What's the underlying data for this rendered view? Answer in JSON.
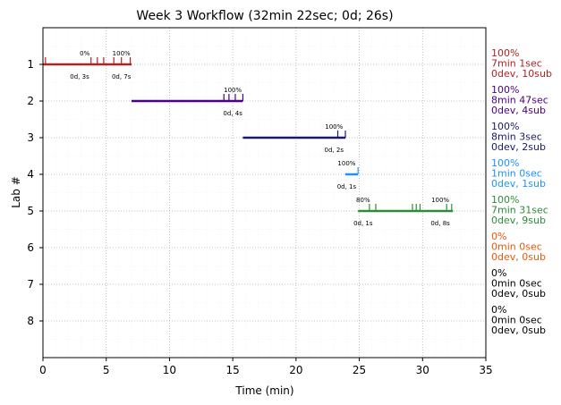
{
  "chart_data": {
    "type": "timeline",
    "title": "Week 3 Workflow (32min 22sec; 0d; 26s)",
    "xlabel": "Time (min)",
    "ylabel": "Lab #",
    "xlim": [
      0,
      35
    ],
    "ylim": [
      9,
      0
    ],
    "x_ticks": [
      "0",
      "5",
      "10",
      "15",
      "20",
      "25",
      "30",
      "35"
    ],
    "y_ticks": [
      "1",
      "2",
      "3",
      "4",
      "5",
      "6",
      "7",
      "8"
    ],
    "grid": true,
    "labs": [
      {
        "lab": 1,
        "color": "#b22222",
        "start": 0.0,
        "end": 7.0,
        "submissions": [
          0.2,
          3.8,
          4.3,
          4.8,
          5.6,
          6.2,
          6.9
        ],
        "labels": [
          {
            "x": 3.3,
            "pos": "above",
            "text": "0%"
          },
          {
            "x": 6.2,
            "pos": "above",
            "text": "100%"
          },
          {
            "x": 2.9,
            "pos": "below",
            "text": "0d, 3s"
          },
          {
            "x": 6.2,
            "pos": "below",
            "text": "0d, 7s"
          }
        ],
        "stats": [
          "100%",
          "7min 1sec",
          "0dev, 10sub"
        ]
      },
      {
        "lab": 2,
        "color": "#4b0082",
        "start": 7.0,
        "end": 15.8,
        "submissions": [
          14.3,
          14.7,
          15.2,
          15.8
        ],
        "labels": [
          {
            "x": 15.0,
            "pos": "above",
            "text": "100%"
          },
          {
            "x": 15.0,
            "pos": "below",
            "text": "0d, 4s"
          }
        ],
        "stats": [
          "100%",
          "8min 47sec",
          "0dev, 4sub"
        ]
      },
      {
        "lab": 3,
        "color": "#191970",
        "start": 15.8,
        "end": 23.9,
        "submissions": [
          23.3,
          23.9
        ],
        "labels": [
          {
            "x": 23.0,
            "pos": "above",
            "text": "100%"
          },
          {
            "x": 23.0,
            "pos": "below",
            "text": "0d, 2s"
          }
        ],
        "stats": [
          "100%",
          "8min 3sec",
          "0dev, 2sub"
        ]
      },
      {
        "lab": 4,
        "color": "#1e90ff",
        "start": 23.9,
        "end": 24.9,
        "submissions": [
          24.9
        ],
        "labels": [
          {
            "x": 24.0,
            "pos": "above",
            "text": "100%"
          },
          {
            "x": 24.0,
            "pos": "below",
            "text": "0d, 1s"
          }
        ],
        "stats": [
          "100%",
          "1min 0sec",
          "0dev, 1sub"
        ]
      },
      {
        "lab": 5,
        "color": "#2e8b3a",
        "start": 24.9,
        "end": 32.4,
        "submissions": [
          25.8,
          26.3,
          29.2,
          29.5,
          29.8,
          31.9,
          32.3
        ],
        "labels": [
          {
            "x": 25.3,
            "pos": "above",
            "text": "80%"
          },
          {
            "x": 31.4,
            "pos": "above",
            "text": "100%"
          },
          {
            "x": 25.3,
            "pos": "below",
            "text": "0d, 1s"
          },
          {
            "x": 31.4,
            "pos": "below",
            "text": "0d, 8s"
          }
        ],
        "stats": [
          "100%",
          "7min 31sec",
          "0dev, 9sub"
        ]
      },
      {
        "lab": 6,
        "color": "#e8590c",
        "stats": [
          "0%",
          "0min 0sec",
          "0dev, 0sub"
        ]
      },
      {
        "lab": 7,
        "color": "#000000",
        "stats": [
          "0%",
          "0min 0sec",
          "0dev, 0sub"
        ]
      },
      {
        "lab": 8,
        "color": "#000000",
        "stats": [
          "0%",
          "0min 0sec",
          "0dev, 0sub"
        ]
      }
    ]
  }
}
